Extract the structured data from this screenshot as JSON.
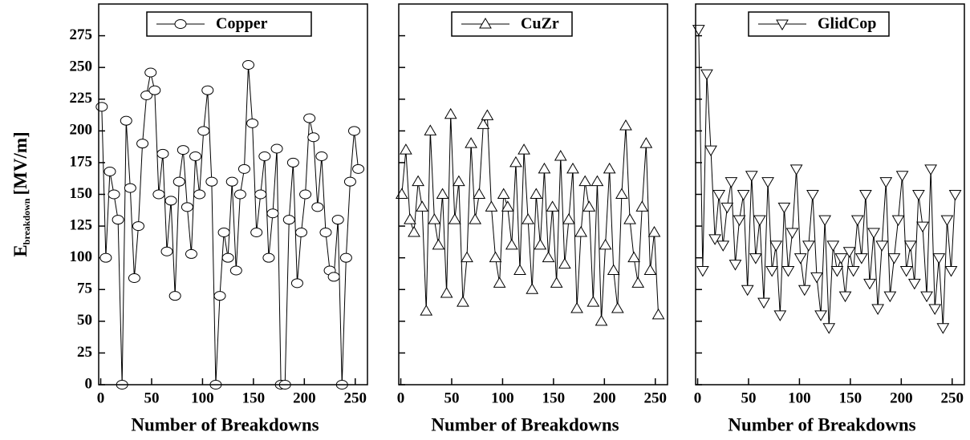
{
  "chart_data": [
    {
      "type": "line",
      "y_label": "E",
      "y_label_sub": "breakdown",
      "y_label_unit": "[MV/m]",
      "x_label": "Number of Breakdowns",
      "xlim": [
        -2,
        262
      ],
      "ylim": [
        0,
        300
      ],
      "xticks": [
        0,
        50,
        100,
        150,
        200,
        250
      ],
      "yticks": [
        0,
        25,
        50,
        75,
        100,
        125,
        150,
        175,
        200,
        225,
        250,
        275
      ],
      "show_ytick_labels": true,
      "series": [
        {
          "name": "Copper",
          "color": "#000000",
          "marker": "circle",
          "x": [
            1,
            5,
            9,
            13,
            17,
            21,
            25,
            29,
            33,
            37,
            41,
            45,
            49,
            53,
            57,
            61,
            65,
            69,
            73,
            77,
            81,
            85,
            89,
            93,
            97,
            101,
            105,
            109,
            113,
            117,
            121,
            125,
            129,
            133,
            137,
            141,
            145,
            149,
            153,
            157,
            161,
            165,
            169,
            173,
            177,
            181,
            185,
            189,
            193,
            197,
            201,
            205,
            209,
            213,
            217,
            221,
            225,
            229,
            233,
            237,
            241,
            245,
            249,
            253
          ],
          "values": [
            219,
            100,
            168,
            150,
            130,
            0,
            208,
            155,
            84,
            125,
            190,
            228,
            246,
            232,
            150,
            182,
            105,
            145,
            70,
            160,
            185,
            140,
            103,
            180,
            150,
            200,
            232,
            160,
            0,
            70,
            120,
            100,
            160,
            90,
            150,
            170,
            252,
            206,
            120,
            150,
            180,
            100,
            135,
            186,
            0,
            0,
            130,
            175,
            80,
            120,
            150,
            210,
            195,
            140,
            180,
            120,
            90,
            85,
            130,
            0,
            100,
            160,
            200,
            170
          ]
        }
      ]
    },
    {
      "type": "line",
      "x_label": "Number of Breakdowns",
      "xlim": [
        -2,
        262
      ],
      "ylim": [
        0,
        300
      ],
      "xticks": [
        0,
        50,
        100,
        150,
        200,
        250
      ],
      "yticks": [
        0,
        25,
        50,
        75,
        100,
        125,
        150,
        175,
        200,
        225,
        250,
        275
      ],
      "show_ytick_labels": false,
      "series": [
        {
          "name": "CuZr",
          "color": "#000000",
          "marker": "triangle-up",
          "x": [
            1,
            5,
            9,
            13,
            17,
            21,
            25,
            29,
            33,
            37,
            41,
            45,
            49,
            53,
            57,
            61,
            65,
            69,
            73,
            77,
            81,
            85,
            89,
            93,
            97,
            101,
            105,
            109,
            113,
            117,
            121,
            125,
            129,
            133,
            137,
            141,
            145,
            149,
            153,
            157,
            161,
            165,
            169,
            173,
            177,
            181,
            185,
            189,
            193,
            197,
            201,
            205,
            209,
            213,
            217,
            221,
            225,
            229,
            233,
            237,
            241,
            245,
            249,
            253
          ],
          "values": [
            150,
            185,
            130,
            120,
            160,
            140,
            58,
            200,
            130,
            110,
            150,
            72,
            213,
            130,
            160,
            65,
            100,
            190,
            130,
            150,
            205,
            212,
            140,
            100,
            80,
            150,
            140,
            110,
            175,
            90,
            185,
            130,
            75,
            150,
            110,
            170,
            100,
            140,
            80,
            180,
            95,
            130,
            170,
            60,
            120,
            160,
            140,
            65,
            160,
            50,
            110,
            170,
            90,
            60,
            150,
            204,
            130,
            100,
            80,
            140,
            190,
            90,
            120,
            55
          ]
        }
      ]
    },
    {
      "type": "line",
      "x_label": "Number of Breakdowns",
      "xlim": [
        -2,
        262
      ],
      "ylim": [
        0,
        300
      ],
      "xticks": [
        0,
        50,
        100,
        150,
        200,
        250
      ],
      "yticks": [
        0,
        25,
        50,
        75,
        100,
        125,
        150,
        175,
        200,
        225,
        250,
        275
      ],
      "show_ytick_labels": false,
      "series": [
        {
          "name": "GlidCop",
          "color": "#000000",
          "marker": "triangle-down",
          "x": [
            1,
            5,
            9,
            13,
            17,
            21,
            25,
            29,
            33,
            37,
            41,
            45,
            49,
            53,
            57,
            61,
            65,
            69,
            73,
            77,
            81,
            85,
            89,
            93,
            97,
            101,
            105,
            109,
            113,
            117,
            121,
            125,
            129,
            133,
            137,
            141,
            145,
            149,
            153,
            157,
            161,
            165,
            169,
            173,
            177,
            181,
            185,
            189,
            193,
            197,
            201,
            205,
            209,
            213,
            217,
            221,
            225,
            229,
            233,
            237,
            241,
            245,
            249,
            253
          ],
          "values": [
            280,
            90,
            245,
            185,
            115,
            150,
            110,
            140,
            160,
            95,
            130,
            150,
            75,
            165,
            100,
            130,
            65,
            160,
            90,
            110,
            55,
            140,
            90,
            120,
            170,
            100,
            75,
            110,
            150,
            85,
            55,
            130,
            45,
            110,
            90,
            100,
            70,
            105,
            90,
            130,
            100,
            150,
            80,
            120,
            60,
            110,
            160,
            70,
            100,
            130,
            165,
            90,
            110,
            80,
            150,
            125,
            70,
            170,
            60,
            100,
            45,
            130,
            90,
            150
          ]
        }
      ]
    }
  ]
}
